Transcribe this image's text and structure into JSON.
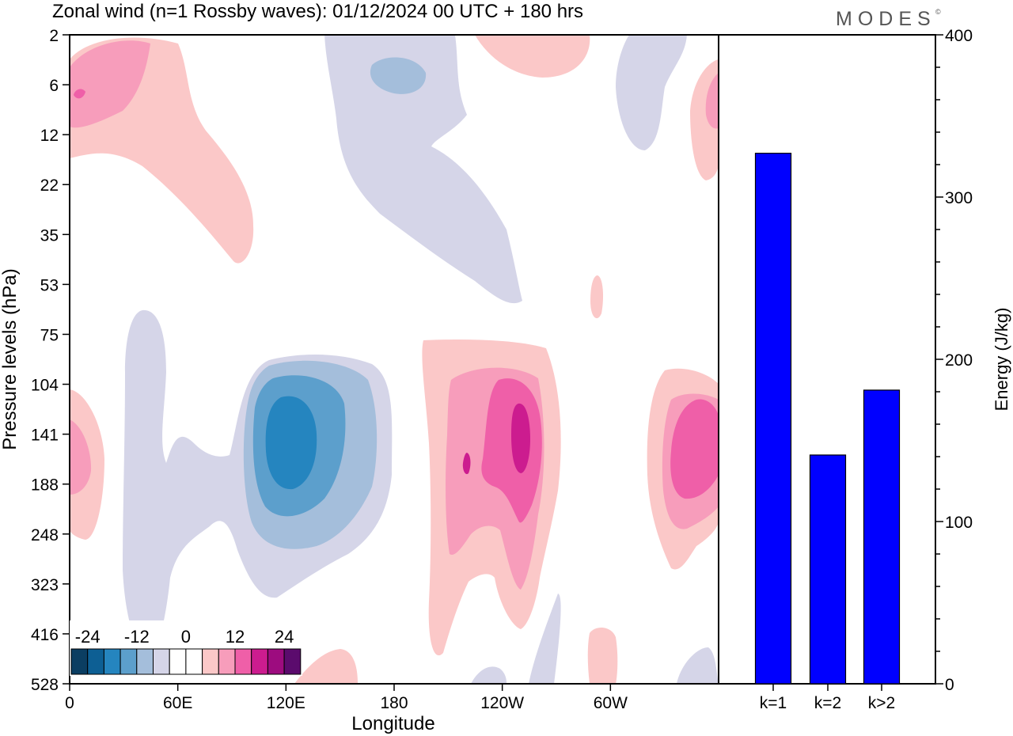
{
  "title": "Zonal wind (n=1 Rossby waves):  01/12/2024  00 UTC  + 180 hrs",
  "brand": "MODES",
  "brand_mark": "©",
  "chart_data": [
    {
      "type": "heatmap",
      "name": "zonal-wind-contour",
      "xlabel": "Longitude",
      "ylabel": "Pressure levels (hPa)",
      "x_ticks": [
        {
          "lon": 0,
          "label": "0"
        },
        {
          "lon": 60,
          "label": "60E"
        },
        {
          "lon": 120,
          "label": "120E"
        },
        {
          "lon": 180,
          "label": "180"
        },
        {
          "lon": 240,
          "label": "120W"
        },
        {
          "lon": 300,
          "label": "60W"
        }
      ],
      "xlim": [
        0,
        360
      ],
      "y_levels": [
        "2",
        "6",
        "12",
        "22",
        "35",
        "53",
        "75",
        "104",
        "141",
        "188",
        "248",
        "323",
        "416",
        "528"
      ],
      "colorbar": {
        "labels": [
          "-24",
          "-12",
          "0",
          "12",
          "24"
        ],
        "colors": [
          "#0b3e62",
          "#0d5f94",
          "#2585bf",
          "#5c9fcc",
          "#a4bedb",
          "#d5d5e8",
          "#ffffff",
          "#ffffff",
          "#fbc8c8",
          "#f79dbb",
          "#ef5fa8",
          "#cc1c8f",
          "#9d0c7f",
          "#5b0b6d"
        ]
      },
      "features": [
        {
          "kind": "negative",
          "lon": 137,
          "level": "141",
          "min": -15
        },
        {
          "kind": "positive",
          "lon": 250,
          "level": "141",
          "max": 18
        },
        {
          "kind": "positive",
          "lon": 344,
          "level": "188",
          "max": 12
        },
        {
          "kind": "negative",
          "lon": 182,
          "level": "6",
          "min": -6
        },
        {
          "kind": "positive",
          "lon": 8,
          "level": "6",
          "max": 12
        }
      ]
    },
    {
      "type": "bar",
      "name": "energy-bars",
      "categories": [
        "k=1",
        "k=2",
        "k>2"
      ],
      "values": [
        327,
        141,
        181
      ],
      "ylabel": "Energy (J/kg)",
      "ylim": [
        0,
        400
      ],
      "yticks": [
        0,
        100,
        200,
        300,
        400
      ],
      "bar_color": "#0000ff"
    }
  ]
}
